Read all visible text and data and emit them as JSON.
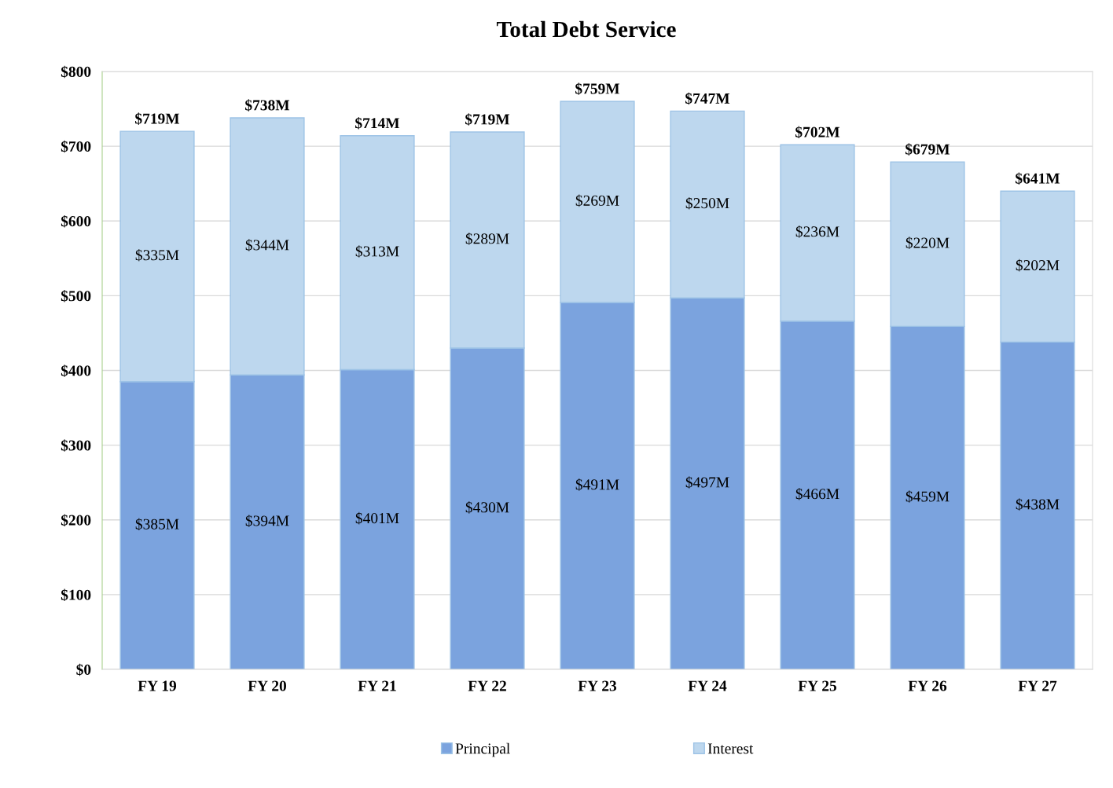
{
  "chart_data": {
    "type": "bar",
    "title": "Total Debt Service",
    "stacked": true,
    "categories": [
      "FY 19",
      "FY 20",
      "FY 21",
      "FY 22",
      "FY 23",
      "FY 24",
      "FY 25",
      "FY 26",
      "FY 27"
    ],
    "series": [
      {
        "name": "Principal",
        "color": "#7ba3de",
        "values": [
          385,
          394,
          401,
          430,
          491,
          497,
          466,
          459,
          438
        ],
        "value_labels": [
          "$385M",
          "$394M",
          "$401M",
          "$430M",
          "$491M",
          "$497M",
          "$466M",
          "$459M",
          "$438M"
        ]
      },
      {
        "name": "Interest",
        "color": "#bdd7ee",
        "values": [
          335,
          344,
          313,
          289,
          269,
          250,
          236,
          220,
          202
        ],
        "value_labels": [
          "$335M",
          "$344M",
          "$313M",
          "$289M",
          "$269M",
          "$250M",
          "$236M",
          "$220M",
          "$202M"
        ]
      }
    ],
    "totals": [
      "$719M",
      "$738M",
      "$714M",
      "$719M",
      "$759M",
      "$747M",
      "$702M",
      "$679M",
      "$641M"
    ],
    "ylim": [
      0,
      800
    ],
    "yticks": [
      {
        "value": 0,
        "label": "$0"
      },
      {
        "value": 100,
        "label": "$100"
      },
      {
        "value": 200,
        "label": "$200"
      },
      {
        "value": 300,
        "label": "$300"
      },
      {
        "value": 400,
        "label": "$400"
      },
      {
        "value": 500,
        "label": "$500"
      },
      {
        "value": 600,
        "label": "$600"
      },
      {
        "value": 700,
        "label": "$700"
      },
      {
        "value": 800,
        "label": "$800"
      }
    ],
    "grid": "y",
    "legend": "bottom"
  }
}
